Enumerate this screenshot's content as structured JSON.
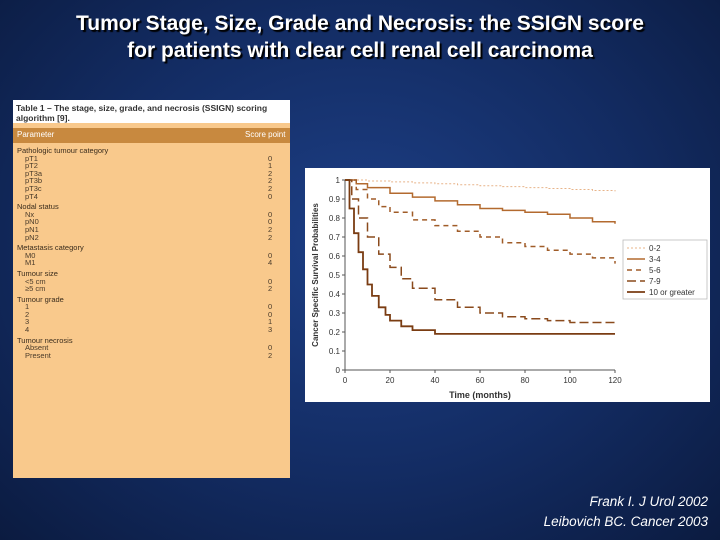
{
  "title": {
    "line1": "Tumor Stage, Size, Grade and Necrosis: the SSIGN score",
    "line2": "for patients with clear cell renal cell carcinoma"
  },
  "table": {
    "caption_line1": "Table 1 – The stage, size, grade, and necrosis (SSIGN) scoring",
    "caption_line2": "algorithm [9].",
    "col_parameter": "Parameter",
    "col_score": "Score point",
    "rows": [
      {
        "label": "Pathologic tumour category",
        "score": "",
        "kind": "cat"
      },
      {
        "label": "pT1",
        "score": "0",
        "kind": "sub"
      },
      {
        "label": "pT2",
        "score": "1",
        "kind": "sub"
      },
      {
        "label": "pT3a",
        "score": "2",
        "kind": "sub"
      },
      {
        "label": "pT3b",
        "score": "2",
        "kind": "sub"
      },
      {
        "label": "pT3c",
        "score": "2",
        "kind": "sub"
      },
      {
        "label": "pT4",
        "score": "0",
        "kind": "sub"
      },
      {
        "label": "Nodal status",
        "score": "",
        "kind": "cat"
      },
      {
        "label": "Nx",
        "score": "0",
        "kind": "sub"
      },
      {
        "label": "pN0",
        "score": "0",
        "kind": "sub"
      },
      {
        "label": "pN1",
        "score": "2",
        "kind": "sub"
      },
      {
        "label": "pN2",
        "score": "2",
        "kind": "sub"
      },
      {
        "label": "Metastasis category",
        "score": "",
        "kind": "cat"
      },
      {
        "label": "M0",
        "score": "0",
        "kind": "sub"
      },
      {
        "label": "M1",
        "score": "4",
        "kind": "sub"
      },
      {
        "label": "Tumour size",
        "score": "",
        "kind": "cat"
      },
      {
        "label": "<5 cm",
        "score": "0",
        "kind": "sub"
      },
      {
        "label": "≥5 cm",
        "score": "2",
        "kind": "sub"
      },
      {
        "label": "Tumour grade",
        "score": "",
        "kind": "cat"
      },
      {
        "label": "1",
        "score": "0",
        "kind": "sub"
      },
      {
        "label": "2",
        "score": "0",
        "kind": "sub"
      },
      {
        "label": "3",
        "score": "1",
        "kind": "sub"
      },
      {
        "label": "4",
        "score": "3",
        "kind": "sub"
      },
      {
        "label": "Tumour necrosis",
        "score": "",
        "kind": "cat"
      },
      {
        "label": "Absent",
        "score": "0",
        "kind": "sub"
      },
      {
        "label": "Present",
        "score": "2",
        "kind": "sub"
      }
    ]
  },
  "chart_data": {
    "type": "line",
    "title": "",
    "xlabel": "Time (months)",
    "ylabel": "Cancer Specific Survival Probabilities",
    "xlim": [
      0,
      120
    ],
    "ylim": [
      0,
      1
    ],
    "xticks": [
      "0",
      "20",
      "40",
      "60",
      "80",
      "100",
      "120"
    ],
    "yticks": [
      "0",
      "0.1",
      "0.2",
      "0.3",
      "0.4",
      "0.5",
      "0.6",
      "0.7",
      "0.8",
      "0.9",
      "1"
    ],
    "grid": false,
    "legend_position": "right",
    "series": [
      {
        "name": "0-2",
        "color": "#e8b48a",
        "dash": "2,2",
        "width": 1,
        "x": [
          0,
          10,
          20,
          30,
          40,
          50,
          60,
          70,
          80,
          90,
          100,
          110,
          120
        ],
        "y": [
          1,
          0.995,
          0.99,
          0.985,
          0.98,
          0.975,
          0.97,
          0.965,
          0.96,
          0.955,
          0.95,
          0.945,
          0.94
        ]
      },
      {
        "name": "3-4",
        "color": "#b36a2f",
        "dash": "",
        "width": 1.5,
        "x": [
          0,
          5,
          10,
          20,
          30,
          40,
          50,
          60,
          70,
          80,
          90,
          100,
          110,
          120
        ],
        "y": [
          1,
          0.98,
          0.96,
          0.93,
          0.91,
          0.89,
          0.87,
          0.85,
          0.84,
          0.83,
          0.82,
          0.8,
          0.78,
          0.77
        ]
      },
      {
        "name": "5-6",
        "color": "#a05c28",
        "dash": "5,4",
        "width": 1.5,
        "x": [
          0,
          5,
          10,
          15,
          20,
          30,
          40,
          50,
          60,
          70,
          80,
          90,
          100,
          110,
          120
        ],
        "y": [
          1,
          0.95,
          0.9,
          0.86,
          0.83,
          0.79,
          0.76,
          0.73,
          0.7,
          0.67,
          0.65,
          0.63,
          0.61,
          0.59,
          0.56
        ]
      },
      {
        "name": "7-9",
        "color": "#8a4a1c",
        "dash": "9,4",
        "width": 1.5,
        "x": [
          0,
          3,
          6,
          10,
          15,
          20,
          25,
          30,
          40,
          50,
          60,
          70,
          80,
          90,
          100,
          110,
          120
        ],
        "y": [
          1,
          0.9,
          0.8,
          0.7,
          0.61,
          0.54,
          0.48,
          0.43,
          0.37,
          0.33,
          0.3,
          0.28,
          0.27,
          0.26,
          0.25,
          0.25,
          0.25
        ]
      },
      {
        "name": "10 or greater",
        "color": "#7a3c12",
        "dash": "",
        "width": 1.8,
        "x": [
          0,
          2,
          4,
          6,
          8,
          10,
          12,
          15,
          18,
          20,
          25,
          30,
          40,
          60,
          80,
          100,
          120
        ],
        "y": [
          1,
          0.85,
          0.72,
          0.62,
          0.53,
          0.45,
          0.39,
          0.33,
          0.29,
          0.26,
          0.23,
          0.21,
          0.19,
          0.19,
          0.19,
          0.19,
          0.19
        ]
      }
    ]
  },
  "citation": {
    "line1": "Frank I. J Urol 2002",
    "line2": "Leibovich BC. Cancer 2003"
  },
  "colors": {
    "background": "#132c63",
    "table_bg": "#f9c98c",
    "table_header": "#c8893f"
  }
}
